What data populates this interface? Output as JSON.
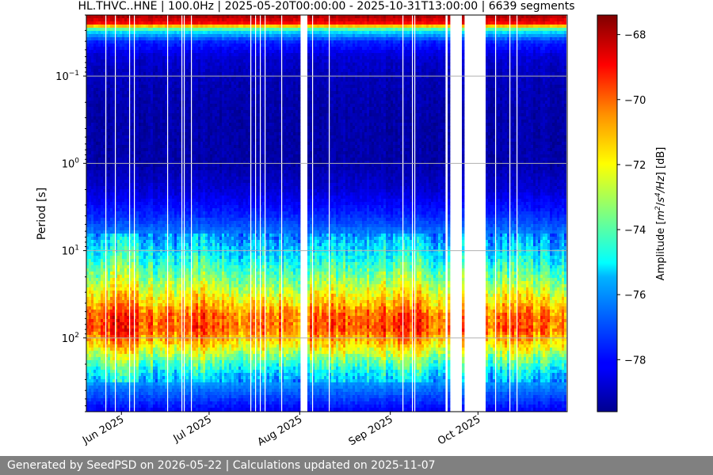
{
  "chart_data": {
    "type": "heatmap",
    "title": "HL.THVC..HNE | 100.0Hz | 2025-05-20T00:00:00 - 2025-10-31T13:00:00 | 6639 segments",
    "xlabel": "",
    "ylabel": "Period [s]",
    "y_scale": "log",
    "y_inverted": true,
    "ylim": [
      0.02,
      700
    ],
    "xlim": [
      "2025-05-20",
      "2025-10-31"
    ],
    "x_ticks": [
      {
        "date": "2025-06-01",
        "label": "Jun 2025"
      },
      {
        "date": "2025-07-01",
        "label": "Jul 2025"
      },
      {
        "date": "2025-08-01",
        "label": "Aug 2025"
      },
      {
        "date": "2025-09-01",
        "label": "Sep 2025"
      },
      {
        "date": "2025-10-01",
        "label": "Oct 2025"
      }
    ],
    "y_ticks": [
      {
        "value": 0.1,
        "base": "10",
        "exp": "−1"
      },
      {
        "value": 1,
        "base": "10",
        "exp": "0"
      },
      {
        "value": 10,
        "base": "10",
        "exp": "1"
      },
      {
        "value": 100,
        "base": "10",
        "exp": "2"
      }
    ],
    "grid": true,
    "colormap": "jet",
    "colorbar": {
      "label": "Amplitude [m²/s⁴/Hz] [dB]",
      "label_parts": [
        "Amplitude [",
        "m",
        "2",
        "/",
        "s",
        "4",
        "/",
        "Hz",
        "] [dB]"
      ],
      "range": [
        -79.6,
        -67.4
      ],
      "ticks": [
        "−68",
        "−70",
        "−72",
        "−74",
        "−76",
        "−78"
      ],
      "tick_values": [
        -68,
        -70,
        -72,
        -74,
        -76,
        -78
      ]
    },
    "amplitude_profile": [
      {
        "period": 0.02,
        "db": -67.8
      },
      {
        "period": 0.025,
        "db": -69.0
      },
      {
        "period": 0.03,
        "db": -75.0
      },
      {
        "period": 0.04,
        "db": -77.6
      },
      {
        "period": 0.06,
        "db": -78.6
      },
      {
        "period": 0.1,
        "db": -78.9
      },
      {
        "period": 0.3,
        "db": -79.1
      },
      {
        "period": 1,
        "db": -79.1
      },
      {
        "period": 2,
        "db": -78.6
      },
      {
        "period": 4,
        "db": -77.6
      },
      {
        "period": 7,
        "db": -76.4
      },
      {
        "period": 12,
        "db": -75.2
      },
      {
        "period": 20,
        "db": -73.8
      },
      {
        "period": 35,
        "db": -72.0
      },
      {
        "period": 55,
        "db": -70.4
      },
      {
        "period": 80,
        "db": -70.2
      },
      {
        "period": 120,
        "db": -71.8
      },
      {
        "period": 180,
        "db": -74.0
      },
      {
        "period": 260,
        "db": -75.6
      },
      {
        "period": 400,
        "db": -76.8
      },
      {
        "period": 700,
        "db": -78.2
      }
    ],
    "data_gaps": [
      {
        "start": "2025-08-01",
        "end": "2025-08-03"
      },
      {
        "start": "2025-09-19",
        "end": "2025-09-20"
      },
      {
        "start": "2025-09-21",
        "end": "2025-09-25"
      },
      {
        "start": "2025-09-26",
        "end": "2025-10-03"
      }
    ],
    "axis_color": "#000000",
    "grid_color": "#b0b0b0"
  },
  "footer": {
    "text": "Generated by SeedPSD on 2026-05-22 | Calculations updated on 2025-11-07"
  }
}
